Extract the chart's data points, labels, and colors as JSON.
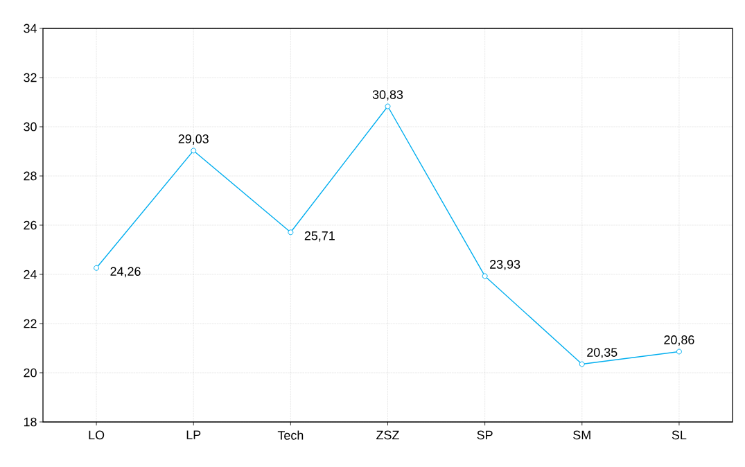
{
  "chart_data": {
    "type": "line",
    "categories": [
      "LO",
      "LP",
      "Tech",
      "ZSZ",
      "SP",
      "SM",
      "SL"
    ],
    "values": [
      24.26,
      29.03,
      25.71,
      30.83,
      23.93,
      20.35,
      20.86
    ],
    "value_labels": [
      "24,26",
      "29,03",
      "25,71",
      "30,83",
      "23,93",
      "20,35",
      "20,86"
    ],
    "color": "#00aeef",
    "ylim": [
      18,
      34
    ],
    "yticks": [
      18,
      20,
      22,
      24,
      26,
      28,
      30,
      32,
      34
    ],
    "grid": true,
    "marker": "circle",
    "line_style": "solid"
  }
}
